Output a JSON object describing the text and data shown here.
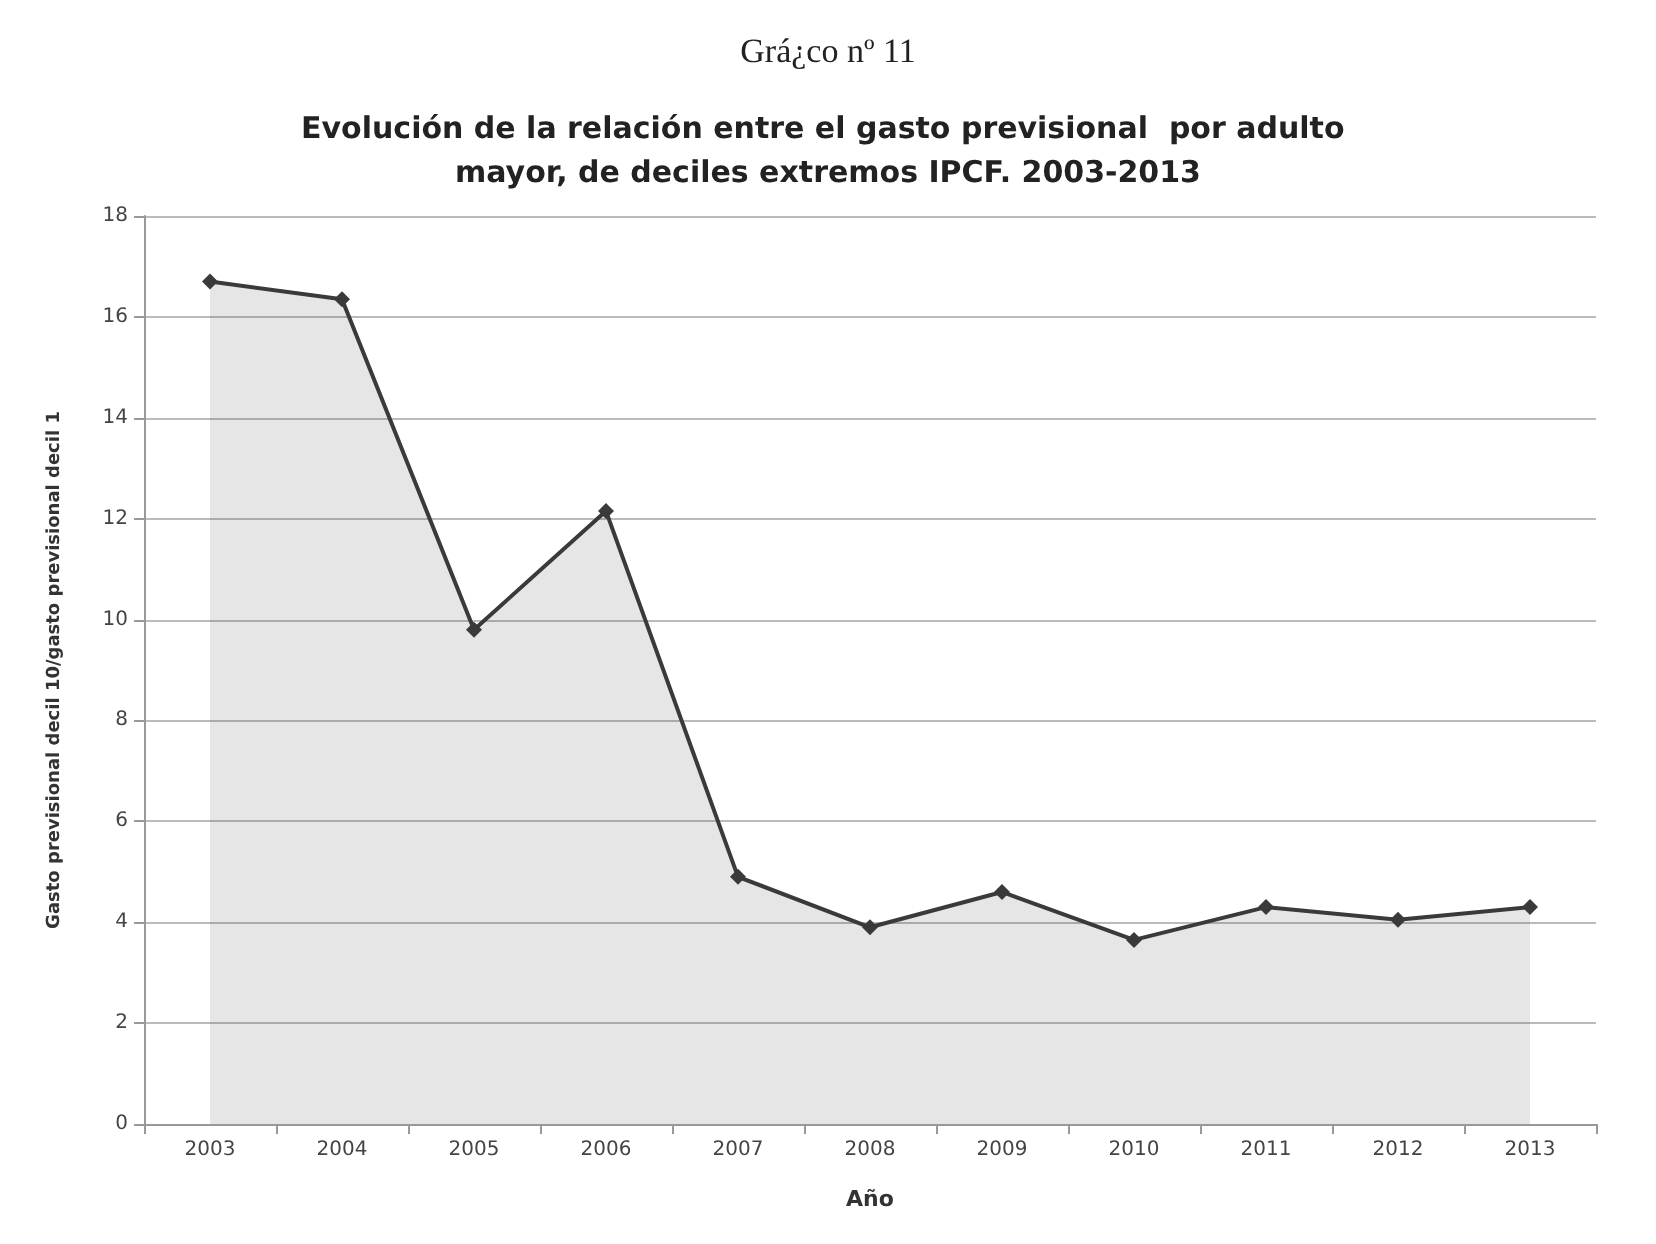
{
  "chart_data": {
    "type": "area",
    "title": "Evolución de la relación entre el gasto previsional  por adulto mayor, de deciles extremos IPCF. 2003-2013",
    "annotations": [
      "Grá¿co nº 11"
    ],
    "xlabel": "Año",
    "ylabel": "Gasto previsional decil 10/gasto previsional decil 1",
    "categories": [
      "2003",
      "2004",
      "2005",
      "2006",
      "2007",
      "2008",
      "2009",
      "2010",
      "2011",
      "2012",
      "2013"
    ],
    "series": [
      {
        "color": "#3a3a3a",
        "values": [
          16.7,
          16.35,
          9.8,
          12.15,
          4.9,
          3.9,
          4.6,
          3.65,
          4.3,
          4.05,
          4.3
        ]
      }
    ],
    "ylim": [
      0,
      18
    ],
    "yticks": [
      0,
      2,
      4,
      6,
      8,
      10,
      12,
      14,
      16,
      18
    ],
    "grid": "y",
    "marker": "diamond",
    "line_style": "solid"
  }
}
